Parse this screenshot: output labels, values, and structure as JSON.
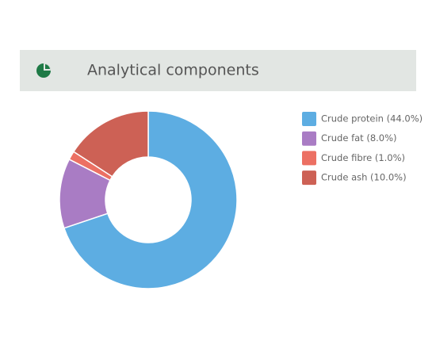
{
  "chart_data": {
    "type": "donut",
    "title": "Analytical components",
    "labels": [
      "Crude protein (44.0%)",
      "Crude fat (8.0%)",
      "Crude fibre (1.0%)",
      "Crude ash (10.0%)"
    ],
    "values": [
      44.0,
      8.0,
      1.0,
      10.0
    ],
    "colors": [
      "#5dade2",
      "#a97cc4",
      "#ec7063",
      "#cd6155"
    ]
  }
}
